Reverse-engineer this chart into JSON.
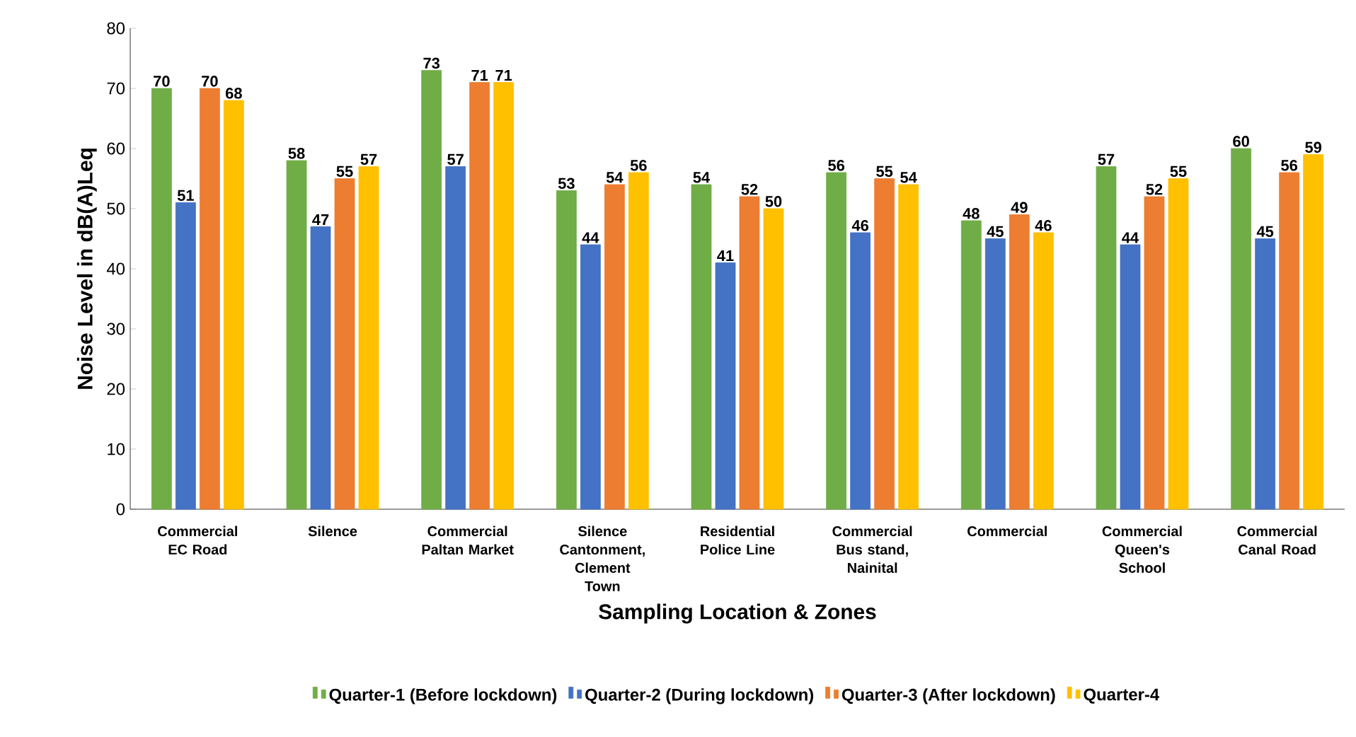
{
  "chart_data": {
    "type": "bar",
    "xlabel": "Sampling Location & Zones",
    "ylabel": "Noise Level in dB(A)Leq",
    "categories": [
      "Commercial EC Road",
      "Silence",
      "Commercial Paltan Market",
      "Silence Cantonment, Clement Town",
      "Residential Police Line",
      "Commercial Bus stand, Nainital",
      "Commercial",
      "Commercial Queen's School",
      "Commercial Canal Road"
    ],
    "series": [
      {
        "name": "Quarter-1 (Before lockdown)",
        "color": "#70ad47",
        "values": [
          70,
          58,
          73,
          53,
          54,
          56,
          48,
          57,
          60
        ]
      },
      {
        "name": "Quarter-2 (During lockdown)",
        "color": "#4472c4",
        "values": [
          51,
          47,
          57,
          44,
          41,
          46,
          45,
          44,
          45
        ]
      },
      {
        "name": "Quarter-3 (After lockdown)",
        "color": "#ed7d31",
        "values": [
          70,
          55,
          71,
          54,
          52,
          55,
          49,
          52,
          56
        ]
      },
      {
        "name": "Quarter-4",
        "color": "#ffc000",
        "values": [
          68,
          57,
          71,
          56,
          50,
          54,
          46,
          55,
          59
        ]
      }
    ],
    "ylim": [
      0,
      80
    ],
    "yticks": [
      0,
      10,
      20,
      30,
      40,
      50,
      60,
      70,
      80
    ],
    "data_labels": true,
    "legend": "bottom"
  }
}
